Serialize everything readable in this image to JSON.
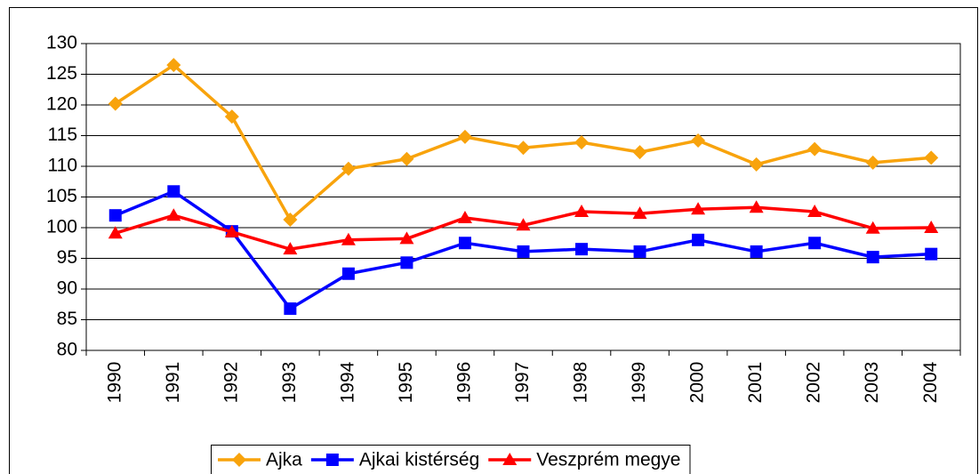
{
  "chart_data": {
    "type": "line",
    "categories": [
      "1990",
      "1991",
      "1992",
      "1993",
      "1994",
      "1995",
      "1996",
      "1997",
      "1998",
      "1999",
      "2000",
      "2001",
      "2002",
      "2003",
      "2004"
    ],
    "series": [
      {
        "name": "Ajka",
        "color": "#f8a30c",
        "marker": "diamond",
        "values": [
          120.2,
          126.5,
          118.1,
          101.3,
          109.6,
          111.2,
          114.8,
          113.0,
          113.9,
          112.3,
          114.2,
          110.3,
          112.8,
          110.6,
          111.4
        ]
      },
      {
        "name": "Ajkai kistérség",
        "color": "#0000ff",
        "marker": "square",
        "values": [
          102.0,
          105.9,
          99.4,
          86.8,
          92.5,
          94.3,
          97.5,
          96.1,
          96.5,
          96.1,
          98.0,
          96.1,
          97.5,
          95.2,
          95.7
        ]
      },
      {
        "name": "Veszprém megye",
        "color": "#ff0000",
        "marker": "triangle",
        "values": [
          99.1,
          102.0,
          99.3,
          96.5,
          98.0,
          98.2,
          101.6,
          100.4,
          102.6,
          102.3,
          103.0,
          103.3,
          102.6,
          99.9,
          100.0
        ]
      }
    ],
    "ylim": [
      80,
      130
    ],
    "yticks": [
      80,
      85,
      90,
      95,
      100,
      105,
      110,
      115,
      120,
      125,
      130
    ],
    "grid": true,
    "legend": "bottom"
  }
}
